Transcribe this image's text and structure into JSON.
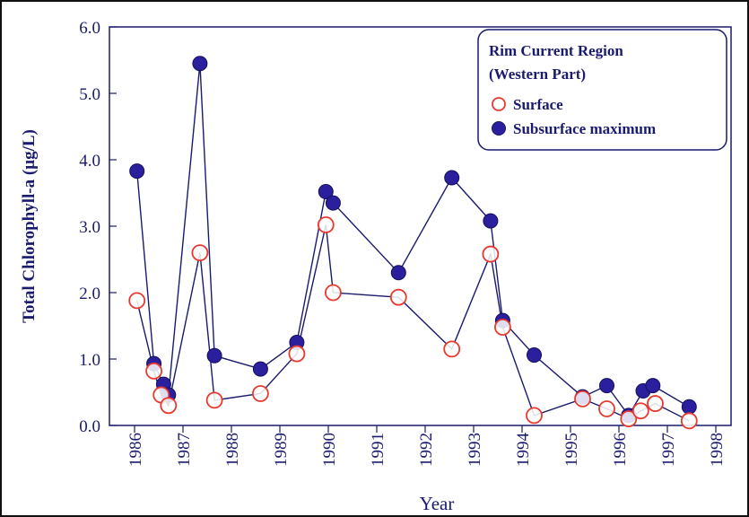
{
  "chart_data": {
    "type": "line",
    "title": "",
    "xlabel": "Year",
    "ylabel": "Total Chlorophyll-a (µg/L)",
    "xlim": [
      1986,
      1998
    ],
    "ylim": [
      0,
      6
    ],
    "x_ticks": [
      "1986",
      "1987",
      "1988",
      "1989",
      "1990",
      "1991",
      "1992",
      "1993",
      "1994",
      "1995",
      "1996",
      "1997",
      "1998"
    ],
    "y_ticks": [
      "0.0",
      "1.0",
      "2.0",
      "3.0",
      "4.0",
      "5.0",
      "6.0"
    ],
    "grid": false,
    "legend": {
      "title_line1": "Rim Current Region",
      "title_line2": "(Western Part)",
      "placement": "top-right"
    },
    "series": [
      {
        "name": "Surface",
        "marker": "open-circle",
        "color": "#e8392e",
        "line_color": "#1a1a6e",
        "x": [
          1986.05,
          1986.4,
          1986.55,
          1986.7,
          1987.35,
          1987.65,
          1988.6,
          1989.35,
          1989.95,
          1990.1,
          1991.45,
          1992.55,
          1993.35,
          1993.6,
          1994.25,
          1995.25,
          1995.75,
          1996.2,
          1996.45,
          1996.75,
          1997.45
        ],
        "y": [
          1.88,
          0.82,
          0.46,
          0.3,
          2.6,
          0.38,
          0.48,
          1.08,
          3.02,
          2.0,
          1.93,
          1.15,
          2.58,
          1.48,
          0.15,
          0.4,
          0.25,
          0.1,
          0.22,
          0.33,
          0.07
        ]
      },
      {
        "name": "Subsurface maximum",
        "marker": "filled-circle",
        "color": "#2b1f9e",
        "line_color": "#1a1a6e",
        "x": [
          1986.05,
          1986.4,
          1986.6,
          1986.7,
          1987.35,
          1987.65,
          1988.6,
          1989.35,
          1989.95,
          1990.1,
          1991.45,
          1992.55,
          1993.35,
          1993.6,
          1994.25,
          1995.25,
          1995.75,
          1996.2,
          1996.5,
          1996.7,
          1997.45
        ],
        "y": [
          3.83,
          0.93,
          0.62,
          0.46,
          5.45,
          1.05,
          0.85,
          1.25,
          3.52,
          3.35,
          2.3,
          3.73,
          3.08,
          1.58,
          1.06,
          0.43,
          0.6,
          0.15,
          0.52,
          0.6,
          0.28
        ]
      }
    ]
  }
}
